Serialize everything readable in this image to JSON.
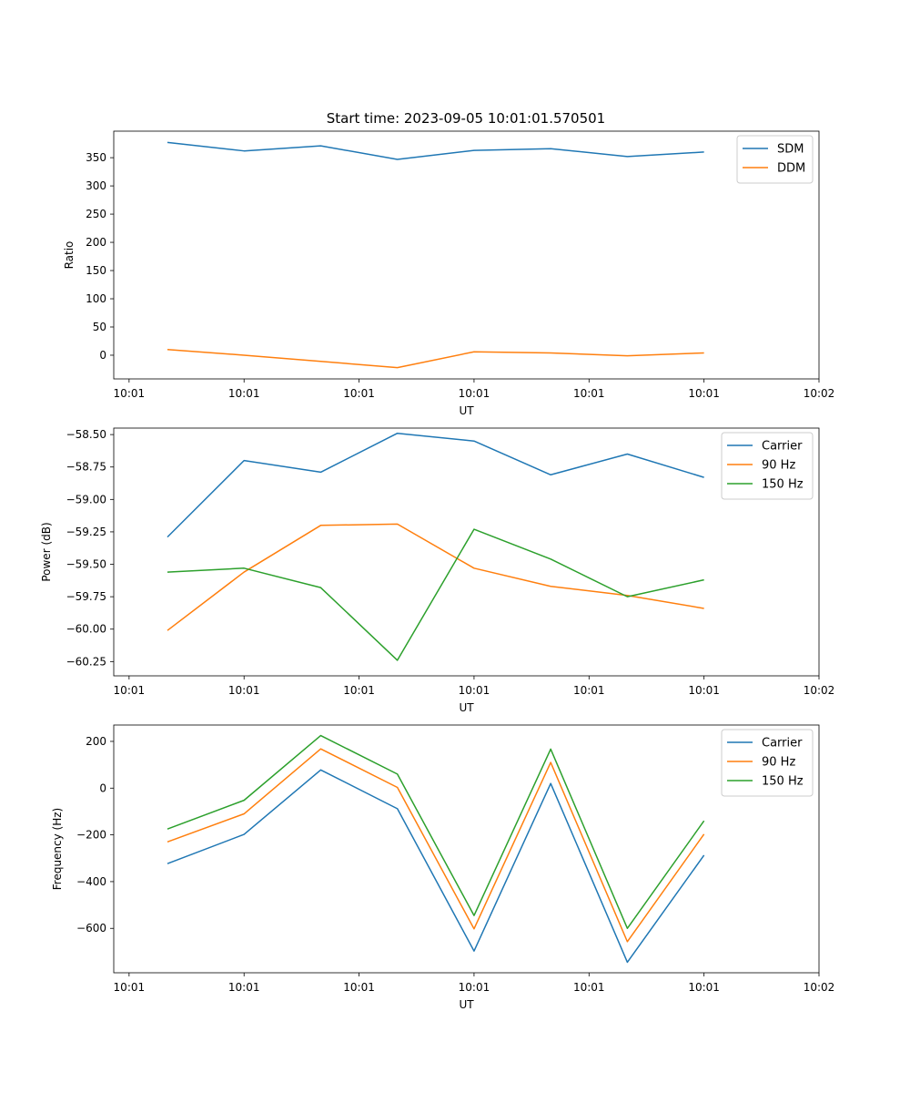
{
  "figure_title": "Start time: 2023-09-05 10:01:01.570501",
  "colors": {
    "c0": "#1f77b4",
    "c1": "#ff7f0e",
    "c2": "#2ca02c"
  },
  "chart_data": [
    {
      "type": "line",
      "xlabel": "UT",
      "ylabel": "Ratio",
      "xlim": [
        0,
        9.2
      ],
      "ylim": [
        -42,
        397
      ],
      "x": [
        0.7,
        1.7,
        2.7,
        3.7,
        4.7,
        5.7,
        6.7,
        7.7
      ],
      "xtick_positions": [
        0.2,
        1.7,
        3.2,
        4.7,
        6.2,
        7.7,
        9.2
      ],
      "xtick_labels": [
        "10:01",
        "10:01",
        "10:01",
        "10:01",
        "10:01",
        "10:01",
        "10:02"
      ],
      "yticks": [
        0,
        50,
        100,
        150,
        200,
        250,
        300,
        350
      ],
      "ytick_labels": [
        "0",
        "50",
        "100",
        "150",
        "200",
        "250",
        "300",
        "350"
      ],
      "legend_position": "top-right",
      "series": [
        {
          "name": "SDM",
          "color": "#1f77b4",
          "values": [
            377,
            362,
            371,
            347,
            363,
            366,
            352,
            360
          ]
        },
        {
          "name": "DDM",
          "color": "#ff7f0e",
          "values": [
            10,
            0,
            -11,
            -22,
            6,
            4,
            -1,
            4
          ]
        }
      ]
    },
    {
      "type": "line",
      "xlabel": "UT",
      "ylabel": "Power (dB)",
      "xlim": [
        0,
        9.2
      ],
      "ylim": [
        -60.36,
        -58.45
      ],
      "x": [
        0.7,
        1.7,
        2.7,
        3.7,
        4.7,
        5.7,
        6.7,
        7.7
      ],
      "xtick_positions": [
        0.2,
        1.7,
        3.2,
        4.7,
        6.2,
        7.7,
        9.2
      ],
      "xtick_labels": [
        "10:01",
        "10:01",
        "10:01",
        "10:01",
        "10:01",
        "10:01",
        "10:02"
      ],
      "yticks": [
        -60.25,
        -60.0,
        -59.75,
        -59.5,
        -59.25,
        -59.0,
        -58.75,
        -58.5
      ],
      "ytick_labels": [
        "−60.25",
        "−60.00",
        "−59.75",
        "−59.50",
        "−59.25",
        "−59.00",
        "−58.75",
        "−58.50"
      ],
      "legend_position": "top-right",
      "series": [
        {
          "name": "Carrier",
          "color": "#1f77b4",
          "values": [
            -59.29,
            -58.7,
            -58.79,
            -58.49,
            -58.55,
            -58.81,
            -58.65,
            -58.83
          ]
        },
        {
          "name": "90 Hz",
          "color": "#ff7f0e",
          "values": [
            -60.01,
            -59.56,
            -59.2,
            -59.19,
            -59.53,
            -59.67,
            -59.74,
            -59.84
          ]
        },
        {
          "name": "150 Hz",
          "color": "#2ca02c",
          "values": [
            -59.56,
            -59.53,
            -59.68,
            -60.24,
            -59.23,
            -59.46,
            -59.75,
            -59.62
          ]
        }
      ]
    },
    {
      "type": "line",
      "xlabel": "UT",
      "ylabel": "Frequency (Hz)",
      "xlim": [
        0,
        9.2
      ],
      "ylim": [
        -790,
        270
      ],
      "x": [
        0.7,
        1.7,
        2.7,
        3.7,
        4.7,
        5.7,
        6.7,
        7.7
      ],
      "xtick_positions": [
        0.2,
        1.7,
        3.2,
        4.7,
        6.2,
        7.7,
        9.2
      ],
      "xtick_labels": [
        "10:01",
        "10:01",
        "10:01",
        "10:01",
        "10:01",
        "10:01",
        "10:02"
      ],
      "yticks": [
        -600,
        -400,
        -200,
        0,
        200
      ],
      "ytick_labels": [
        "−600",
        "−400",
        "−200",
        "0",
        "200"
      ],
      "legend_position": "top-right",
      "series": [
        {
          "name": "Carrier",
          "color": "#1f77b4",
          "values": [
            -323,
            -198,
            78,
            -88,
            -697,
            20,
            -745,
            -287
          ]
        },
        {
          "name": "90 Hz",
          "color": "#ff7f0e",
          "values": [
            -230,
            -110,
            168,
            3,
            -602,
            110,
            -657,
            -197
          ]
        },
        {
          "name": "150 Hz",
          "color": "#2ca02c",
          "values": [
            -175,
            -52,
            225,
            60,
            -545,
            167,
            -600,
            -140
          ]
        }
      ]
    }
  ]
}
